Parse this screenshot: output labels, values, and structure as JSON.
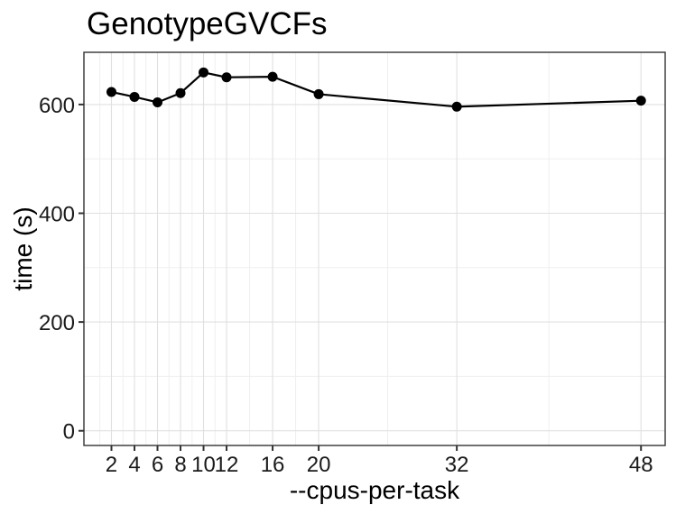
{
  "chart_data": {
    "type": "line",
    "title": "GenotypeGVCFs",
    "xlabel": "--cpus-per-task",
    "ylabel": "time (s)",
    "x": [
      2,
      4,
      6,
      8,
      10,
      12,
      16,
      20,
      32,
      48
    ],
    "y": [
      623,
      614,
      604,
      621,
      659,
      650,
      651,
      619,
      596,
      607
    ],
    "x_tick_values": [
      2,
      4,
      6,
      8,
      10,
      12,
      16,
      20,
      32,
      48
    ],
    "x_tick_labels": [
      "2",
      "4",
      "6",
      "8",
      "10",
      "12",
      "16",
      "20",
      "32",
      "48"
    ],
    "y_tick_values": [
      0,
      200,
      400,
      600
    ],
    "y_tick_labels": [
      "0",
      "200",
      "400",
      "600"
    ],
    "x_minor_breaks": [
      1,
      3,
      5,
      7,
      9,
      11,
      14,
      18,
      26,
      40
    ],
    "y_minor_breaks": [
      100,
      300,
      500
    ],
    "xlim": [
      -0.39,
      50.1
    ],
    "ylim": [
      -27,
      696
    ],
    "grid": "major+minor",
    "legend": "none",
    "colors": {
      "line": "#000000",
      "point": "#000000",
      "grid_major": "#e0e0e0",
      "grid_minor": "#efefef",
      "panel_border": "#333333",
      "tick": "#333333",
      "text": "#1a1a1a",
      "background": "#ffffff"
    }
  }
}
